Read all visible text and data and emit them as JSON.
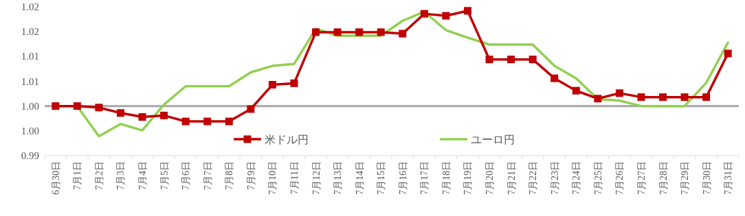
{
  "chart_data": {
    "type": "line",
    "categories": [
      "6月30日",
      "7月1日",
      "7月2日",
      "7月3日",
      "7月4日",
      "7月5日",
      "7月6日",
      "7月7日",
      "7月8日",
      "7月9日",
      "7月10日",
      "7月11日",
      "7月12日",
      "7月13日",
      "7月14日",
      "7月15日",
      "7月16日",
      "7月17日",
      "7月18日",
      "7月19日",
      "7月20日",
      "7月21日",
      "7月22日",
      "7月23日",
      "7月24日",
      "7月25日",
      "7月26日",
      "7月27日",
      "7月28日",
      "7月29日",
      "7月30日",
      "7月31日"
    ],
    "series": [
      {
        "name": "米ドル円",
        "color": "#c00000",
        "marker": "square",
        "values": [
          1.0,
          1.0,
          0.9997,
          0.9986,
          0.9978,
          0.9981,
          0.9969,
          0.9969,
          0.9969,
          0.9994,
          1.0043,
          1.0046,
          1.0149,
          1.0149,
          1.0149,
          1.0149,
          1.0146,
          1.0186,
          1.0182,
          1.0192,
          1.0094,
          1.0094,
          1.0094,
          1.0056,
          1.0031,
          1.0015,
          1.0026,
          1.0018,
          1.0018,
          1.0018,
          1.0018,
          1.0106
        ]
      },
      {
        "name": "ユーロ円",
        "color": "#92d050",
        "marker": "none",
        "values": [
          1.0,
          1.0,
          0.9939,
          0.9964,
          0.9951,
          1.0003,
          1.004,
          1.004,
          1.004,
          1.0068,
          1.0081,
          1.0085,
          1.0156,
          1.0142,
          1.0142,
          1.0142,
          1.0172,
          1.019,
          1.0153,
          1.0138,
          1.0124,
          1.0124,
          1.0124,
          1.0081,
          1.0056,
          1.0014,
          1.0011,
          1.0,
          1.0,
          1.0,
          1.0047,
          1.0128
        ]
      }
    ],
    "ylim": [
      0.99,
      1.02
    ],
    "yticks": [
      {
        "value": 0.99,
        "label": "0.99"
      },
      {
        "value": 0.995,
        "label": "1.00"
      },
      {
        "value": 1.0,
        "label": "1.00"
      },
      {
        "value": 1.005,
        "label": "1.01"
      },
      {
        "value": 1.01,
        "label": "1.01"
      },
      {
        "value": 1.015,
        "label": "1.02"
      },
      {
        "value": 1.02,
        "label": "1.02"
      }
    ],
    "ref_lines": [
      {
        "axis": "y",
        "value": 1.0,
        "color": "#a6a6a6"
      }
    ],
    "legend": "bottom"
  }
}
